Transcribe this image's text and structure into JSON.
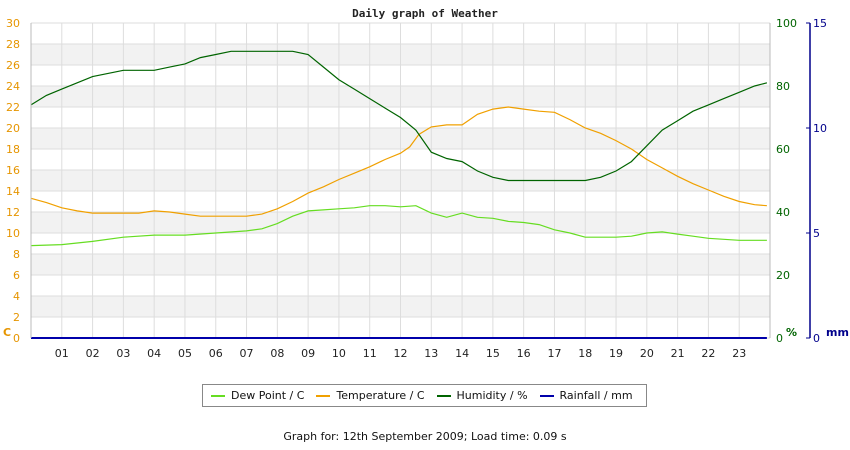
{
  "chart_data": {
    "type": "line",
    "title": "Daily graph of Weather",
    "x_tick_labels": [
      "01",
      "02",
      "03",
      "04",
      "05",
      "06",
      "07",
      "08",
      "09",
      "10",
      "11",
      "12",
      "13",
      "14",
      "15",
      "16",
      "17",
      "18",
      "19",
      "20",
      "21",
      "22",
      "23"
    ],
    "xlim": [
      0,
      24
    ],
    "axes": {
      "left": {
        "unit": "C",
        "ylim": [
          0,
          30
        ],
        "ticks": [
          0,
          2,
          4,
          6,
          8,
          10,
          12,
          14,
          16,
          18,
          20,
          22,
          24,
          26,
          28,
          30
        ],
        "color": "#e69500"
      },
      "right1": {
        "unit": "%",
        "ylim": [
          0,
          100
        ],
        "ticks": [
          0,
          20,
          40,
          60,
          80,
          100
        ],
        "color": "#006400"
      },
      "right2": {
        "unit": "mm",
        "ylim": [
          0,
          15
        ],
        "ticks": [
          0,
          5,
          10,
          15
        ],
        "color": "#00008b"
      }
    },
    "grid": true,
    "legend_position": "bottom",
    "series": [
      {
        "name": "Dew Point / C",
        "axis": "left",
        "color": "#66dd22",
        "x": [
          0,
          1,
          2,
          3,
          4,
          5,
          6,
          7,
          7.5,
          8,
          8.5,
          9,
          9.5,
          10,
          10.5,
          11,
          11.5,
          12,
          12.5,
          13,
          13.5,
          14,
          14.5,
          15,
          15.5,
          16,
          16.5,
          17,
          17.5,
          18,
          18.5,
          19,
          19.5,
          20,
          20.5,
          21,
          21.5,
          22,
          22.5,
          23,
          23.9
        ],
        "values": [
          8.8,
          8.9,
          9.2,
          9.6,
          9.8,
          9.8,
          10.0,
          10.2,
          10.4,
          10.9,
          11.6,
          12.1,
          12.2,
          12.3,
          12.4,
          12.6,
          12.6,
          12.5,
          12.6,
          11.9,
          11.5,
          11.9,
          11.5,
          11.4,
          11.1,
          11.0,
          10.8,
          10.3,
          10.0,
          9.6,
          9.6,
          9.6,
          9.7,
          10.0,
          10.1,
          9.9,
          9.7,
          9.5,
          9.4,
          9.3,
          9.3
        ]
      },
      {
        "name": "Temperature / C",
        "axis": "left",
        "color": "#f0a000",
        "x": [
          0,
          0.5,
          1,
          1.5,
          2,
          3,
          3.5,
          4,
          4.5,
          5,
          5.5,
          6,
          6.5,
          7,
          7.5,
          8,
          8.5,
          9,
          9.5,
          10,
          10.5,
          11,
          11.5,
          12,
          12.3,
          12.6,
          13,
          13.5,
          14,
          14.5,
          15,
          15.5,
          16,
          16.5,
          17,
          17.5,
          18,
          18.5,
          19,
          19.5,
          20,
          20.5,
          21,
          21.5,
          22,
          22.5,
          23,
          23.5,
          23.9
        ],
        "values": [
          13.3,
          12.9,
          12.4,
          12.1,
          11.9,
          11.9,
          11.9,
          12.1,
          12.0,
          11.8,
          11.6,
          11.6,
          11.6,
          11.6,
          11.8,
          12.3,
          13.0,
          13.8,
          14.4,
          15.1,
          15.7,
          16.3,
          17.0,
          17.6,
          18.2,
          19.4,
          20.1,
          20.3,
          20.3,
          21.3,
          21.8,
          22.0,
          21.8,
          21.6,
          21.5,
          20.8,
          20.0,
          19.5,
          18.8,
          18.0,
          17.0,
          16.2,
          15.4,
          14.7,
          14.1,
          13.5,
          13.0,
          12.7,
          12.6
        ]
      },
      {
        "name": "Humidity / %",
        "axis": "right1",
        "color": "#006400",
        "x": [
          0,
          0.5,
          1,
          1.5,
          2,
          2.5,
          3,
          3.5,
          4,
          4.5,
          5,
          5.5,
          6,
          6.5,
          7,
          7.5,
          8,
          8.5,
          9,
          9.5,
          10,
          10.5,
          11,
          11.5,
          12,
          12.5,
          13,
          13.5,
          14,
          14.5,
          15,
          15.5,
          16,
          16.5,
          17,
          17.5,
          18,
          18.5,
          19,
          19.5,
          20,
          20.5,
          21,
          21.5,
          22,
          22.5,
          23,
          23.5,
          23.9
        ],
        "values": [
          74,
          77,
          79,
          81,
          83,
          84,
          85,
          85,
          85,
          86,
          87,
          89,
          90,
          91,
          91,
          91,
          91,
          91,
          90,
          86,
          82,
          79,
          76,
          73,
          70,
          66,
          59,
          57,
          56,
          53,
          51,
          50,
          50,
          50,
          50,
          50,
          50,
          51,
          53,
          56,
          61,
          66,
          69,
          72,
          74,
          76,
          78,
          80,
          81
        ]
      },
      {
        "name": "Rainfall / mm",
        "axis": "right2",
        "color": "#0000aa",
        "x": [
          0,
          23.9
        ],
        "values": [
          0,
          0
        ]
      }
    ]
  },
  "footer": {
    "text": "Graph for: 12th September 2009; Load time: 0.09 s"
  }
}
